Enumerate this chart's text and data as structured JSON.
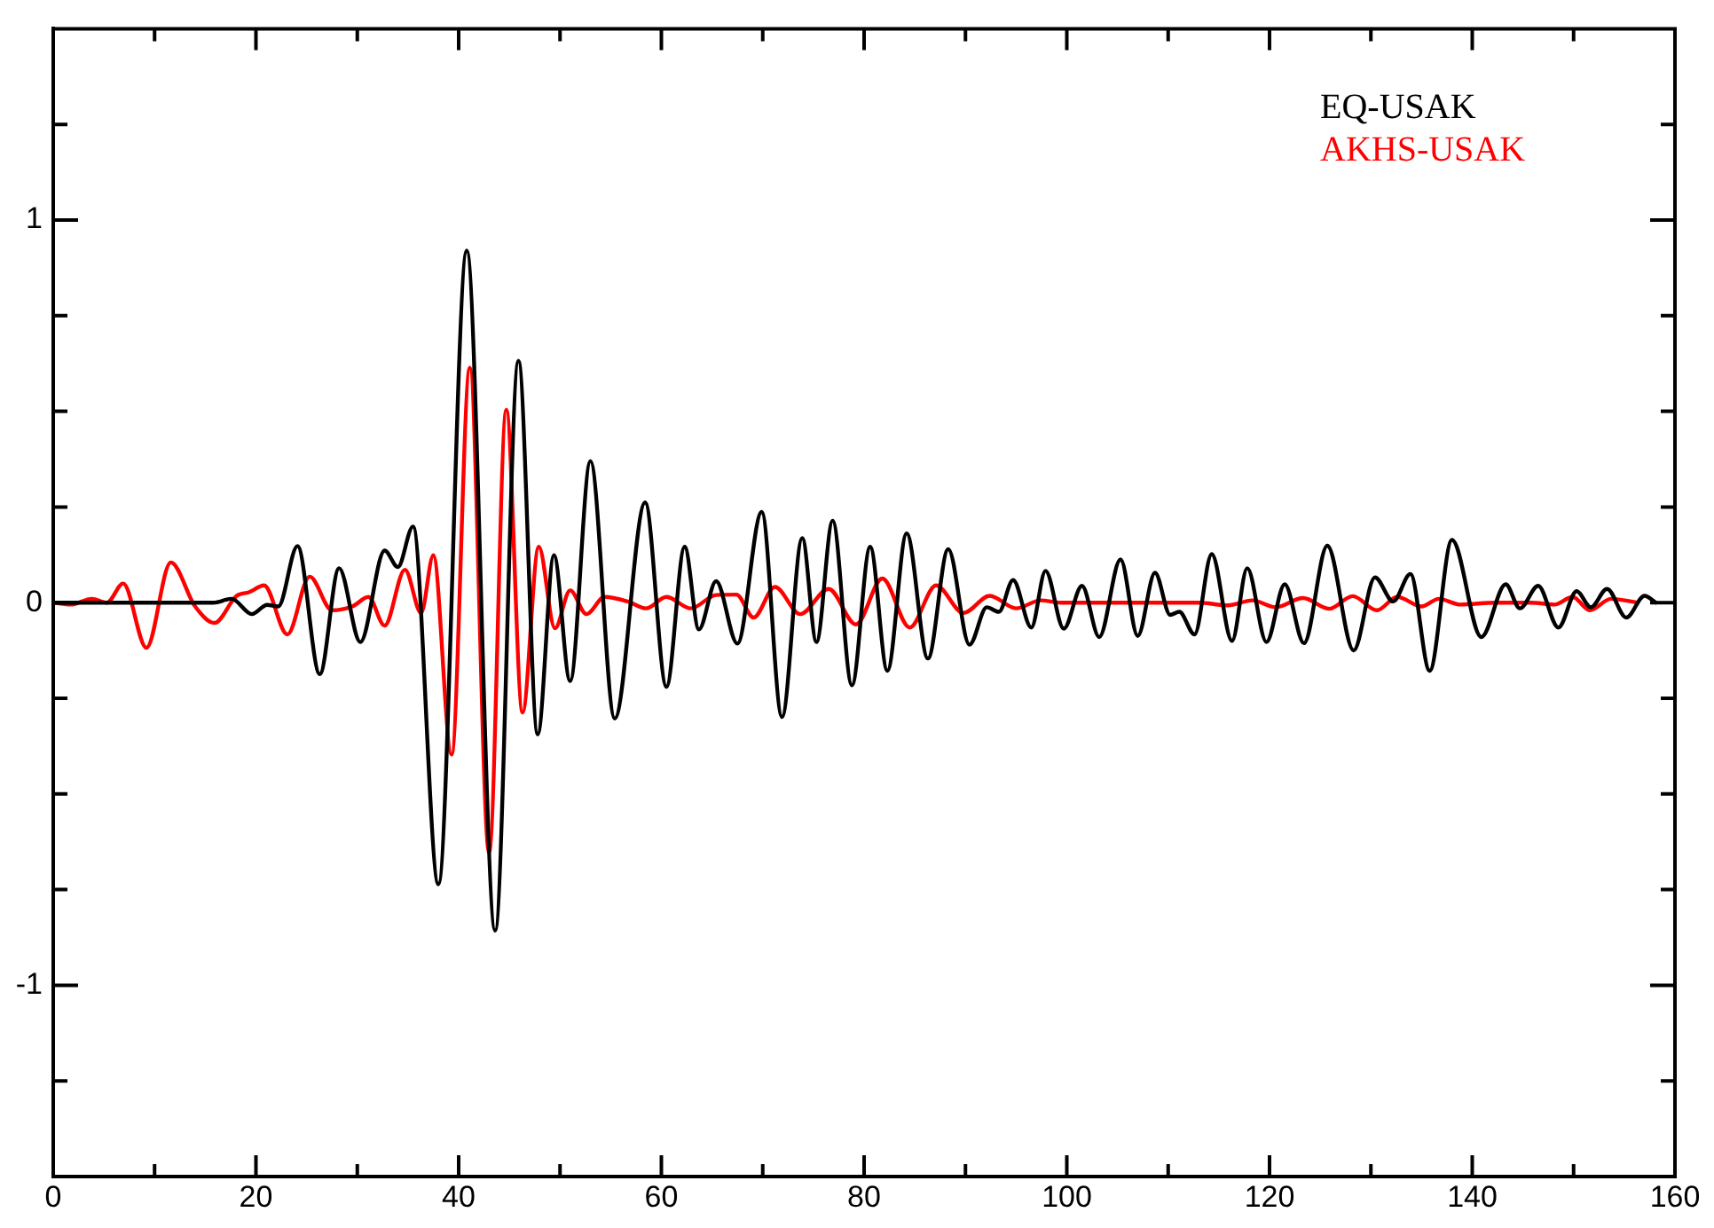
{
  "chart_data": {
    "type": "line",
    "xlim": [
      0,
      160
    ],
    "ylim": [
      -1.5,
      1.5
    ],
    "xticks": [
      0,
      {
        "value": 10,
        "label": null
      },
      20,
      {
        "value": 30,
        "label": null
      },
      40,
      {
        "value": 50,
        "label": null
      },
      60,
      {
        "value": 70,
        "label": null
      },
      80,
      {
        "value": 90,
        "label": null
      },
      100,
      {
        "value": 110,
        "label": null
      },
      120,
      {
        "value": 130,
        "label": null
      },
      140,
      {
        "value": 150,
        "label": null
      },
      160
    ],
    "yticks": [
      {
        "value": -1.25,
        "label": null
      },
      -1,
      {
        "value": -0.75,
        "label": null
      },
      {
        "value": -0.5,
        "label": null
      },
      {
        "value": -0.25,
        "label": null
      },
      0,
      {
        "value": 0.25,
        "label": null
      },
      {
        "value": 0.5,
        "label": null
      },
      {
        "value": 0.75,
        "label": null
      },
      1,
      {
        "value": 1.25,
        "label": null
      }
    ],
    "grid": false,
    "legend": "top right",
    "marker": "none",
    "line_style": "solid",
    "series": [
      {
        "name": "EQ-USAK",
        "color": "#000000",
        "x": [
          0,
          15.8,
          17.6,
          19.6,
          21.1,
          22.2,
          24.1,
          26.3,
          28.2,
          30.3,
          32.7,
          34.0,
          35.5,
          38.0,
          40.8,
          43.6,
          45.9,
          47.8,
          49.4,
          51.0,
          53.0,
          55.4,
          58.4,
          60.5,
          62.3,
          63.7,
          65.4,
          67.5,
          69.9,
          71.9,
          73.9,
          75.3,
          76.9,
          78.8,
          80.6,
          82.3,
          84.2,
          86.3,
          88.3,
          90.4,
          92.1,
          93.3,
          94.7,
          96.5,
          97.9,
          99.7,
          101.5,
          103.2,
          105.3,
          107.0,
          108.7,
          110.2,
          111.1,
          112.6,
          114.3,
          116.3,
          117.8,
          119.7,
          121.5,
          123.4,
          125.7,
          128.3,
          130.4,
          132.2,
          133.9,
          135.8,
          138.0,
          140.9,
          143.3,
          144.7,
          146.5,
          148.5,
          150.3,
          151.7,
          153.3,
          155.2,
          157.0,
          158.1
        ],
        "values": [
          0,
          0,
          0.01,
          -0.03,
          -0.006,
          -0.01,
          0.148,
          -0.187,
          0.09,
          -0.103,
          0.136,
          0.093,
          0.199,
          -0.736,
          0.92,
          -0.857,
          0.632,
          -0.344,
          0.124,
          -0.205,
          0.37,
          -0.303,
          0.262,
          -0.22,
          0.146,
          -0.07,
          0.056,
          -0.107,
          0.237,
          -0.299,
          0.169,
          -0.103,
          0.214,
          -0.216,
          0.146,
          -0.178,
          0.181,
          -0.146,
          0.14,
          -0.11,
          -0.012,
          -0.024,
          0.059,
          -0.065,
          0.083,
          -0.068,
          0.044,
          -0.09,
          0.113,
          -0.087,
          0.078,
          -0.032,
          -0.024,
          -0.083,
          0.127,
          -0.1,
          0.09,
          -0.103,
          0.048,
          -0.106,
          0.149,
          -0.125,
          0.066,
          0.003,
          0.075,
          -0.178,
          0.164,
          -0.09,
          0.048,
          -0.015,
          0.044,
          -0.065,
          0.03,
          -0.012,
          0.036,
          -0.039,
          0.018,
          0
        ]
      },
      {
        "name": "AKHS-USAK",
        "color": "#ff0000",
        "x": [
          0,
          1.75,
          3.8,
          5.3,
          6.9,
          9.2,
          11.6,
          14.0,
          15.9,
          18.1,
          19.3,
          20.8,
          23.1,
          25.3,
          27.5,
          29.5,
          31.1,
          32.7,
          34.7,
          36.3,
          37.5,
          39.3,
          41.1,
          43.0,
          44.7,
          46.3,
          47.9,
          49.5,
          51.0,
          52.6,
          54.4,
          56.7,
          58.5,
          60.5,
          62.9,
          65.4,
          67.4,
          69.1,
          71.2,
          73.7,
          76.5,
          79.2,
          81.8,
          84.5,
          87.1,
          89.8,
          92.4,
          95.0,
          97.4,
          99.4,
          113.0,
          115.9,
          118.3,
          120.6,
          123.3,
          125.9,
          128.2,
          130.6,
          132.6,
          135.0,
          136.7,
          138.8,
          142.3,
          145.8,
          148.1,
          149.9,
          151.6,
          153.7,
          156.3
        ],
        "values": [
          0,
          -0.005,
          0.01,
          0,
          0.05,
          -0.118,
          0.105,
          -0.01,
          -0.053,
          0.018,
          0.027,
          0.045,
          -0.083,
          0.068,
          -0.02,
          -0.01,
          0.015,
          -0.06,
          0.086,
          -0.027,
          0.124,
          -0.397,
          0.614,
          -0.653,
          0.504,
          -0.287,
          0.146,
          -0.067,
          0.032,
          -0.03,
          0.015,
          0.003,
          -0.015,
          0.015,
          -0.015,
          0.02,
          0.021,
          -0.039,
          0.041,
          -0.03,
          0.036,
          -0.057,
          0.063,
          -0.065,
          0.045,
          -0.027,
          0.018,
          -0.015,
          0.006,
          0,
          0,
          -0.007,
          0.006,
          -0.012,
          0.012,
          -0.016,
          0.017,
          -0.02,
          0.015,
          -0.01,
          0.01,
          -0.005,
          0,
          0,
          -0.005,
          0.015,
          -0.02,
          0.01,
          0
        ]
      }
    ]
  }
}
